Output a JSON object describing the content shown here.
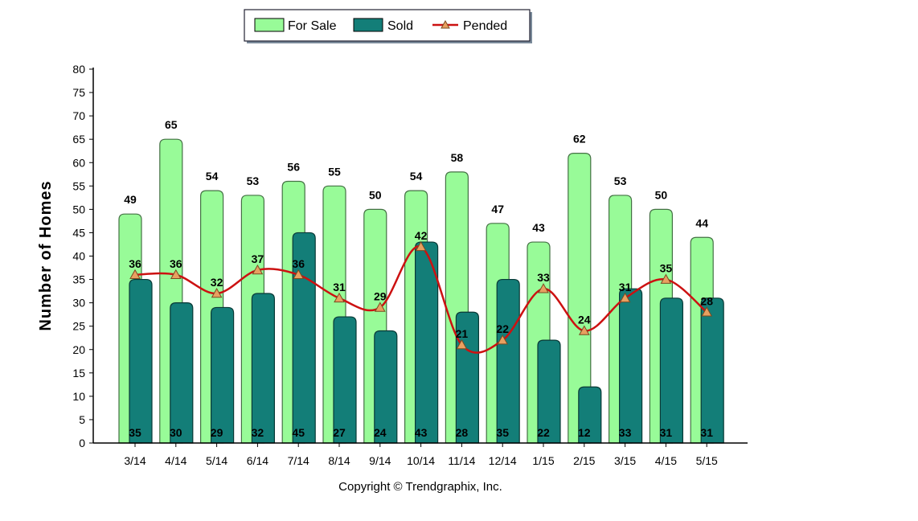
{
  "chart_data": {
    "type": "bar",
    "categories": [
      "3/14",
      "4/14",
      "5/14",
      "6/14",
      "7/14",
      "8/14",
      "9/14",
      "10/14",
      "11/14",
      "12/14",
      "1/15",
      "2/15",
      "3/15",
      "4/15",
      "5/15"
    ],
    "series": [
      {
        "name": "For Sale",
        "type": "bar",
        "color": "#98fb98",
        "values": [
          49,
          65,
          54,
          53,
          56,
          55,
          50,
          54,
          58,
          47,
          43,
          62,
          53,
          50,
          44
        ]
      },
      {
        "name": "Sold",
        "type": "bar",
        "color": "#137e78",
        "values": [
          35,
          30,
          29,
          32,
          45,
          27,
          24,
          43,
          28,
          35,
          22,
          12,
          33,
          31,
          31
        ]
      },
      {
        "name": "Pended",
        "type": "line",
        "color": "#cc1111",
        "marker_color": "#e8a060",
        "values": [
          36,
          36,
          32,
          37,
          36,
          31,
          29,
          42,
          21,
          22,
          33,
          24,
          31,
          35,
          28
        ]
      }
    ],
    "ylabel": "Number of Homes",
    "xlabel": "",
    "ylim": [
      0,
      80
    ],
    "yticks": [
      0,
      5,
      10,
      15,
      20,
      25,
      30,
      35,
      40,
      45,
      50,
      55,
      60,
      65,
      70,
      75,
      80
    ],
    "legend_position": "top-center",
    "grid": false
  },
  "copyright": "Copyright © Trendgraphix, Inc."
}
